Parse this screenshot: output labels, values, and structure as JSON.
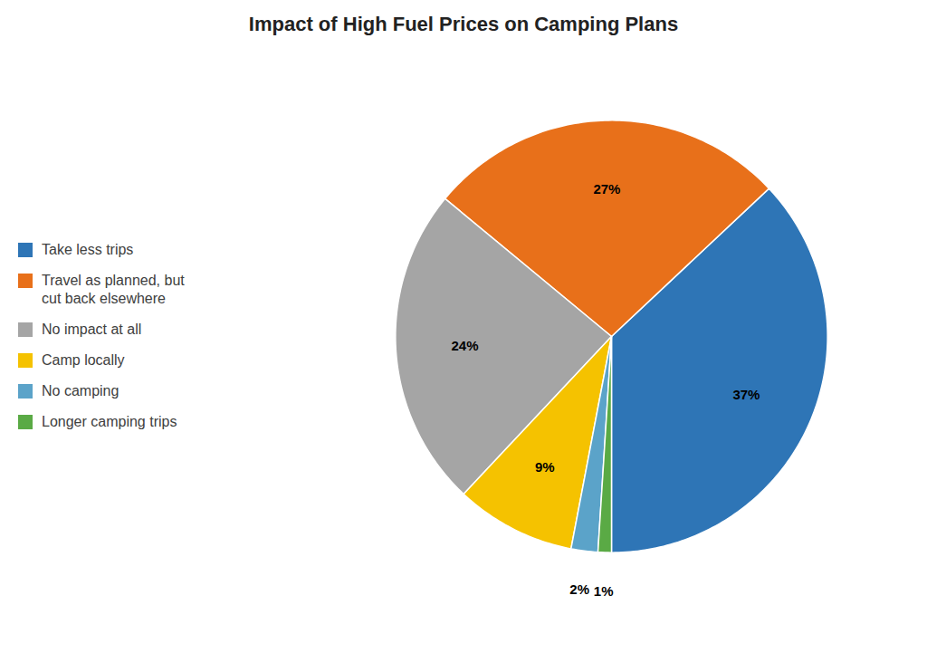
{
  "chart_data": {
    "type": "pie",
    "title": "Impact of High Fuel Prices on Camping Plans",
    "categories": [
      "Take less trips",
      "Travel as planned, but\ncut back elsewhere",
      "No impact at all",
      "Camp locally",
      "No camping",
      "Longer camping trips"
    ],
    "values": [
      37,
      27,
      24,
      9,
      2,
      1
    ],
    "value_labels": [
      "37%",
      "27%",
      "24%",
      "9%",
      "2%",
      "1%"
    ],
    "colors": [
      "#2E75B6",
      "#E8701A",
      "#A5A5A5",
      "#F5C200",
      "#5BA3C9",
      "#5AAA45"
    ],
    "data_labels": true,
    "legend": "left"
  }
}
